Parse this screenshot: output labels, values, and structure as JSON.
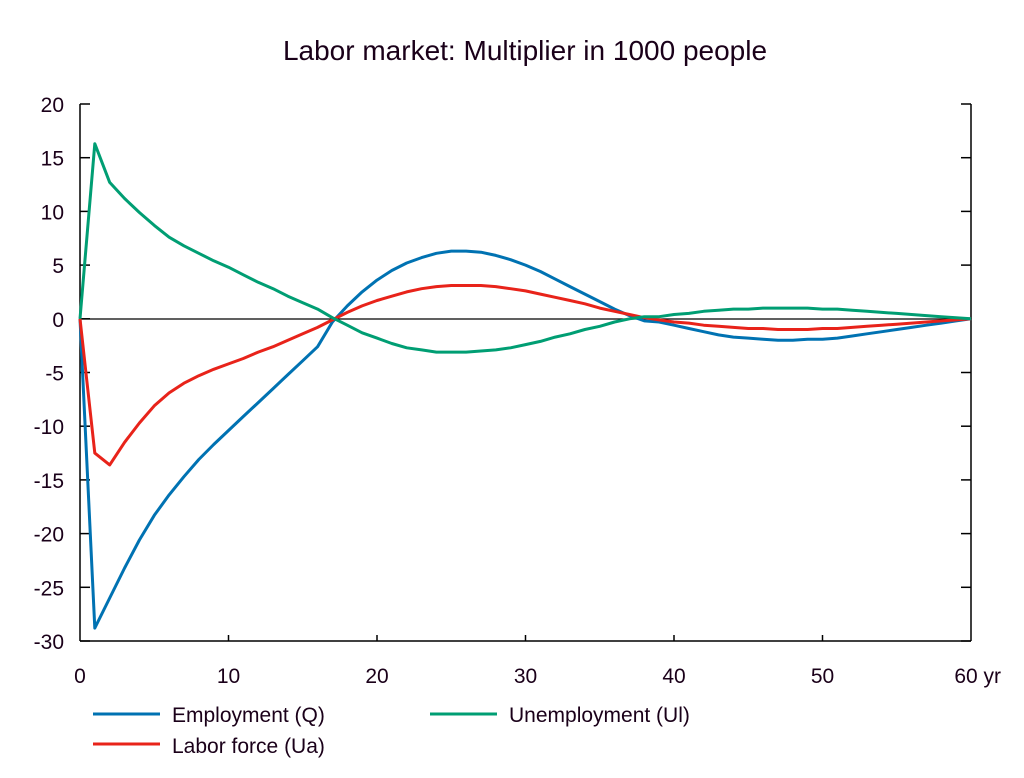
{
  "chart_data": {
    "type": "line",
    "title": "Labor market: Multiplier in 1000 people",
    "xlabel": "",
    "ylabel": "",
    "x_unit_label": "yr",
    "xlim": [
      0,
      60
    ],
    "ylim": [
      -30,
      20
    ],
    "x_ticks": [
      0,
      10,
      20,
      30,
      40,
      50,
      60
    ],
    "x_tick_labels": [
      "0",
      "10",
      "20",
      "30",
      "40",
      "50",
      "60 yr"
    ],
    "y_ticks": [
      20,
      15,
      10,
      5,
      0,
      -5,
      -10,
      -15,
      -20,
      -25,
      -30
    ],
    "y_tick_labels": [
      "20",
      "15",
      "10",
      "5",
      "0",
      "-5",
      "-10",
      "-15",
      "-20",
      "-25",
      "-30"
    ],
    "grid": false,
    "zero_line": true,
    "legend_position": "bottom",
    "x": [
      0,
      1,
      2,
      3,
      4,
      5,
      6,
      7,
      8,
      9,
      10,
      11,
      12,
      13,
      14,
      15,
      16,
      17,
      18,
      19,
      20,
      21,
      22,
      23,
      24,
      25,
      26,
      27,
      28,
      29,
      30,
      31,
      32,
      33,
      34,
      35,
      36,
      37,
      38,
      39,
      40,
      41,
      42,
      43,
      44,
      45,
      46,
      47,
      48,
      49,
      50,
      51,
      52,
      53,
      54,
      55,
      56,
      57,
      58,
      59,
      60
    ],
    "series": [
      {
        "name": "Employment (Q)",
        "color": "#0072b2",
        "values": [
          0,
          -28.8,
          -26.0,
          -23.2,
          -20.6,
          -18.3,
          -16.4,
          -14.7,
          -13.1,
          -11.7,
          -10.4,
          -9.1,
          -7.8,
          -6.5,
          -5.2,
          -3.9,
          -2.6,
          -0.3,
          1.2,
          2.5,
          3.6,
          4.5,
          5.2,
          5.7,
          6.1,
          6.3,
          6.3,
          6.2,
          5.9,
          5.5,
          5.0,
          4.4,
          3.7,
          3.0,
          2.3,
          1.6,
          0.9,
          0.3,
          -0.2,
          -0.3,
          -0.6,
          -0.9,
          -1.2,
          -1.5,
          -1.7,
          -1.8,
          -1.9,
          -2.0,
          -2.0,
          -1.9,
          -1.9,
          -1.8,
          -1.6,
          -1.4,
          -1.2,
          -1.0,
          -0.8,
          -0.6,
          -0.4,
          -0.2,
          0
        ]
      },
      {
        "name": "Labor force (Ua)",
        "color": "#e8231a",
        "values": [
          0,
          -12.5,
          -13.6,
          -11.5,
          -9.7,
          -8.1,
          -6.9,
          -6.0,
          -5.3,
          -4.7,
          -4.2,
          -3.7,
          -3.1,
          -2.6,
          -2.0,
          -1.4,
          -0.8,
          -0.1,
          0.6,
          1.2,
          1.7,
          2.1,
          2.5,
          2.8,
          3.0,
          3.1,
          3.1,
          3.1,
          3.0,
          2.8,
          2.6,
          2.3,
          2.0,
          1.7,
          1.4,
          1.0,
          0.7,
          0.4,
          0.1,
          -0.1,
          -0.3,
          -0.4,
          -0.6,
          -0.7,
          -0.8,
          -0.9,
          -0.9,
          -1.0,
          -1.0,
          -1.0,
          -0.9,
          -0.9,
          -0.8,
          -0.7,
          -0.6,
          -0.5,
          -0.4,
          -0.3,
          -0.2,
          -0.1,
          0
        ]
      },
      {
        "name": "Unemployment (Ul)",
        "color": "#009e73",
        "values": [
          0,
          16.3,
          12.7,
          11.2,
          9.9,
          8.7,
          7.6,
          6.8,
          6.1,
          5.4,
          4.8,
          4.1,
          3.4,
          2.8,
          2.1,
          1.5,
          0.9,
          0.1,
          -0.6,
          -1.3,
          -1.8,
          -2.3,
          -2.7,
          -2.9,
          -3.1,
          -3.1,
          -3.1,
          -3.0,
          -2.9,
          -2.7,
          -2.4,
          -2.1,
          -1.7,
          -1.4,
          -1.0,
          -0.7,
          -0.3,
          0.0,
          0.2,
          0.2,
          0.4,
          0.5,
          0.7,
          0.8,
          0.9,
          0.9,
          1.0,
          1.0,
          1.0,
          1.0,
          0.9,
          0.9,
          0.8,
          0.7,
          0.6,
          0.5,
          0.4,
          0.3,
          0.2,
          0.1,
          0
        ]
      }
    ],
    "legend": [
      {
        "label": "Employment (Q)",
        "color": "#0072b2"
      },
      {
        "label": "Unemployment (Ul)",
        "color": "#009e73"
      },
      {
        "label": "Labor force (Ua)",
        "color": "#e8231a"
      }
    ]
  }
}
